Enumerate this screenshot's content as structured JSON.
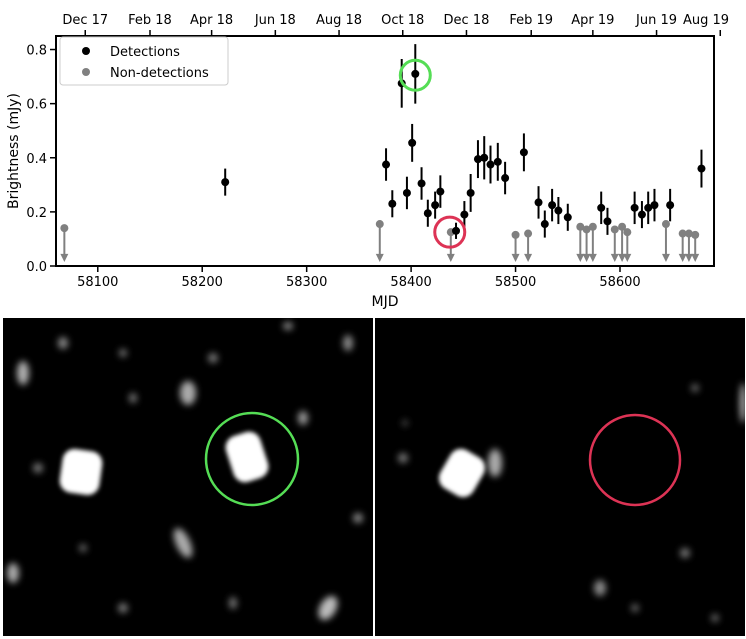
{
  "chart_data": {
    "type": "scatter",
    "xlabel": "MJD",
    "ylabel": "Brightness (mJy)",
    "xlim": [
      58060,
      58690
    ],
    "ylim": [
      0,
      0.85
    ],
    "x_ticks": [
      58100,
      58200,
      58300,
      58400,
      58500,
      58600
    ],
    "y_ticks": [
      0.0,
      0.2,
      0.4,
      0.6,
      0.8
    ],
    "top_axis_ticks": [
      {
        "label": "Dec 17",
        "mjd": 58088
      },
      {
        "label": "Feb 18",
        "mjd": 58150
      },
      {
        "label": "Apr 18",
        "mjd": 58209
      },
      {
        "label": "Jun 18",
        "mjd": 58270
      },
      {
        "label": "Aug 18",
        "mjd": 58331
      },
      {
        "label": "Oct 18",
        "mjd": 58392
      },
      {
        "label": "Dec 18",
        "mjd": 58453
      },
      {
        "label": "Feb 19",
        "mjd": 58515
      },
      {
        "label": "Apr 19",
        "mjd": 58574
      },
      {
        "label": "Jun 19",
        "mjd": 58635
      },
      {
        "label": "Aug 19",
        "mjd": 58696
      }
    ],
    "legend": {
      "position": "top-left",
      "entries": [
        "Detections",
        "Non-detections"
      ]
    },
    "series": [
      {
        "name": "Detections",
        "color": "#000000",
        "points": [
          {
            "x": 58222,
            "y": 0.31,
            "err": 0.05
          },
          {
            "x": 58376,
            "y": 0.375,
            "err": 0.06
          },
          {
            "x": 58382,
            "y": 0.23,
            "err": 0.05
          },
          {
            "x": 58391,
            "y": 0.675,
            "err": 0.09
          },
          {
            "x": 58396,
            "y": 0.27,
            "err": 0.06
          },
          {
            "x": 58401,
            "y": 0.455,
            "err": 0.07
          },
          {
            "x": 58404,
            "y": 0.71,
            "err": 0.11
          },
          {
            "x": 58410,
            "y": 0.305,
            "err": 0.06
          },
          {
            "x": 58416,
            "y": 0.195,
            "err": 0.05
          },
          {
            "x": 58423,
            "y": 0.225,
            "err": 0.05
          },
          {
            "x": 58428,
            "y": 0.275,
            "err": 0.06
          },
          {
            "x": 58443,
            "y": 0.13,
            "err": 0.03
          },
          {
            "x": 58451,
            "y": 0.19,
            "err": 0.05
          },
          {
            "x": 58457,
            "y": 0.27,
            "err": 0.07
          },
          {
            "x": 58464,
            "y": 0.395,
            "err": 0.07
          },
          {
            "x": 58470,
            "y": 0.4,
            "err": 0.08
          },
          {
            "x": 58476,
            "y": 0.375,
            "err": 0.07
          },
          {
            "x": 58483,
            "y": 0.385,
            "err": 0.07
          },
          {
            "x": 58490,
            "y": 0.325,
            "err": 0.06
          },
          {
            "x": 58508,
            "y": 0.42,
            "err": 0.07
          },
          {
            "x": 58522,
            "y": 0.235,
            "err": 0.06
          },
          {
            "x": 58528,
            "y": 0.155,
            "err": 0.05
          },
          {
            "x": 58535,
            "y": 0.225,
            "err": 0.06
          },
          {
            "x": 58541,
            "y": 0.205,
            "err": 0.05
          },
          {
            "x": 58550,
            "y": 0.18,
            "err": 0.05
          },
          {
            "x": 58582,
            "y": 0.215,
            "err": 0.06
          },
          {
            "x": 58588,
            "y": 0.165,
            "err": 0.05
          },
          {
            "x": 58614,
            "y": 0.215,
            "err": 0.06
          },
          {
            "x": 58621,
            "y": 0.19,
            "err": 0.05
          },
          {
            "x": 58627,
            "y": 0.215,
            "err": 0.06
          },
          {
            "x": 58633,
            "y": 0.225,
            "err": 0.06
          },
          {
            "x": 58648,
            "y": 0.225,
            "err": 0.06
          },
          {
            "x": 58678,
            "y": 0.36,
            "err": 0.07
          }
        ]
      },
      {
        "name": "Non-detections",
        "color": "#808080",
        "points": [
          {
            "x": 58068,
            "y": 0.14
          },
          {
            "x": 58370,
            "y": 0.155
          },
          {
            "x": 58438,
            "y": 0.125
          },
          {
            "x": 58500,
            "y": 0.115
          },
          {
            "x": 58512,
            "y": 0.12
          },
          {
            "x": 58562,
            "y": 0.145
          },
          {
            "x": 58568,
            "y": 0.135
          },
          {
            "x": 58574,
            "y": 0.145
          },
          {
            "x": 58595,
            "y": 0.135
          },
          {
            "x": 58602,
            "y": 0.145
          },
          {
            "x": 58607,
            "y": 0.125
          },
          {
            "x": 58644,
            "y": 0.155
          },
          {
            "x": 58660,
            "y": 0.12
          },
          {
            "x": 58666,
            "y": 0.12
          },
          {
            "x": 58672,
            "y": 0.115
          }
        ]
      }
    ],
    "highlights": [
      {
        "x": 58404,
        "y": 0.705,
        "color": "#55dd55"
      },
      {
        "x": 58437,
        "y": 0.125,
        "color": "#dd3355"
      }
    ]
  },
  "images": {
    "left_marker_color": "#55dd55",
    "right_marker_color": "#dd3355"
  }
}
